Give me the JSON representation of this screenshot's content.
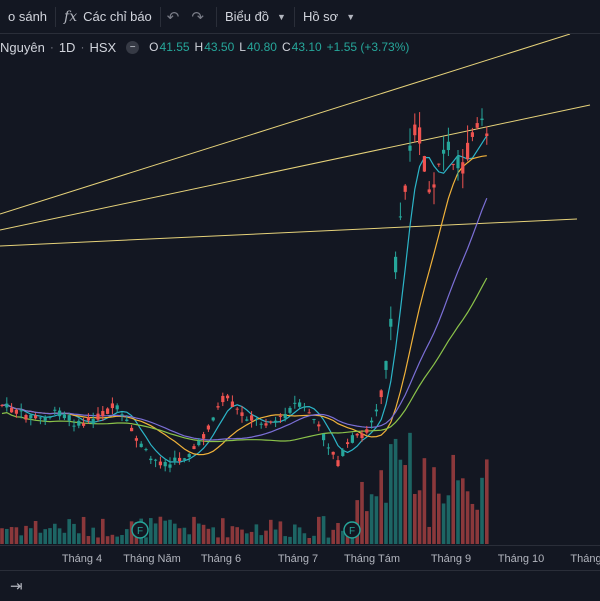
{
  "toolbar": {
    "compare_label": "o sánh",
    "indicators_icon": "fx",
    "indicators_label": "Các chỉ báo",
    "undo_icon": "undo-icon",
    "redo_icon": "redo-icon",
    "chart_label": "Biểu đồ",
    "profile_label": "Hồ sơ"
  },
  "legend": {
    "symbol": "Nguyên",
    "interval": "1D",
    "exchange": "HSX",
    "collapse_glyph": "−",
    "open_k": "O",
    "open_v": "41.55",
    "high_k": "H",
    "high_v": "43.50",
    "low_k": "L",
    "low_v": "40.80",
    "close_k": "C",
    "close_v": "43.10",
    "change": "+1.55 (+3.73%)"
  },
  "xaxis": {
    "labels": [
      "Tháng 4",
      "Tháng Năm",
      "Tháng 6",
      "Tháng 7",
      "Tháng Tám",
      "Tháng 9",
      "Tháng 10",
      "Tháng"
    ]
  },
  "events": [
    {
      "label": "F"
    },
    {
      "label": "F"
    }
  ],
  "colors": {
    "up": "#26a69a",
    "down": "#ef5350",
    "ma_fast": "#2cb5c8",
    "ma_mid": "#f0b23a",
    "ma_slow1": "#7b6fd6",
    "ma_slow2": "#8bc34a",
    "trendline": "#e6d27a",
    "background": "#131722"
  }
}
